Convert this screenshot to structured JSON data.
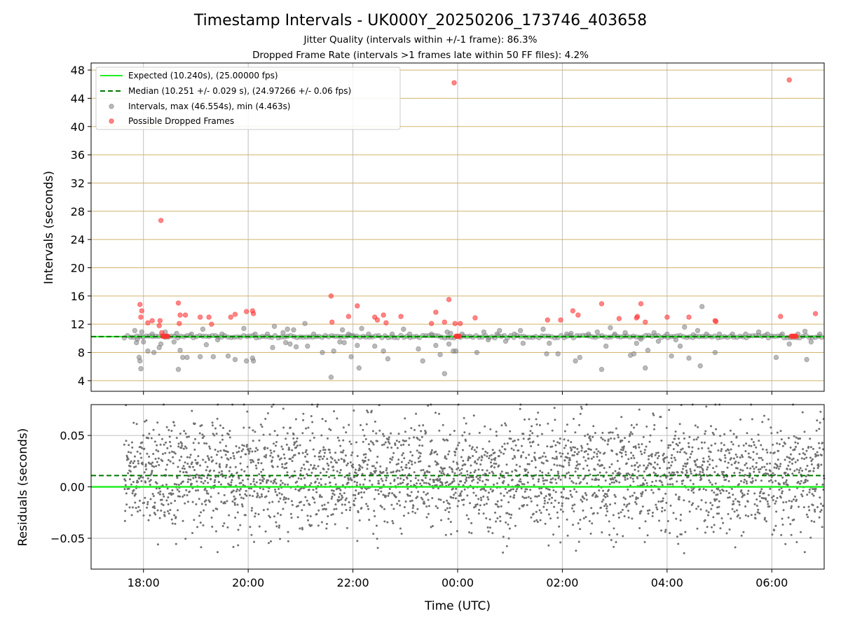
{
  "chart_data": [
    {
      "type": "scatter",
      "title": "Timestamp Intervals - UK000Y_20250206_173746_403658",
      "subtitles": [
        "Jitter Quality (intervals within +/-1 frame): 86.3%",
        "Dropped Frame Rate (intervals >1 frames late within 50 FF files): 4.2%"
      ],
      "xlabel": "",
      "ylabel": "Intervals (seconds)",
      "xlim": [
        "17:00",
        "07:00"
      ],
      "ylim": [
        2.5,
        49
      ],
      "y_ticks": [
        4,
        8,
        12,
        16,
        20,
        24,
        28,
        32,
        36,
        40,
        44,
        48
      ],
      "grid": "major, horizontal lines tan, vertical lines grey",
      "legend_position": "top-left",
      "reference_lines": [
        {
          "name": "Expected (10.240s), (25.00000 fps)",
          "y": 10.24,
          "style": "solid",
          "color": "#22ee22"
        },
        {
          "name": "Median (10.251 +/- 0.029 s), (24.97266 +/- 0.06 fps)",
          "y": 10.251,
          "style": "dashed",
          "color": "#007700"
        }
      ],
      "series": [
        {
          "name": "Intervals, max (46.554s), min (4.463s)",
          "color": "#808080",
          "points": [
            [
              "17:50",
              11.1
            ],
            [
              "17:52",
              9.4
            ],
            [
              "17:53",
              9.9
            ],
            [
              "17:55",
              7.3
            ],
            [
              "17:56",
              6.8
            ],
            [
              "17:57",
              5.7
            ],
            [
              "17:58",
              10.9
            ],
            [
              "18:00",
              9.5
            ],
            [
              "18:05",
              8.2
            ],
            [
              "18:10",
              10.6
            ],
            [
              "18:12",
              8.0
            ],
            [
              "18:18",
              8.7
            ],
            [
              "18:20",
              9.2
            ],
            [
              "18:25",
              10.9
            ],
            [
              "18:35",
              9.5
            ],
            [
              "18:38",
              10.7
            ],
            [
              "18:40",
              5.6
            ],
            [
              "18:42",
              8.3
            ],
            [
              "18:45",
              7.3
            ],
            [
              "18:50",
              7.3
            ],
            [
              "18:55",
              10.6
            ],
            [
              "19:05",
              7.4
            ],
            [
              "19:08",
              11.3
            ],
            [
              "19:12",
              9.1
            ],
            [
              "19:20",
              7.4
            ],
            [
              "19:25",
              9.8
            ],
            [
              "19:30",
              10.6
            ],
            [
              "19:37",
              7.5
            ],
            [
              "19:45",
              7.0
            ],
            [
              "19:55",
              11.4
            ],
            [
              "19:58",
              6.8
            ],
            [
              "20:05",
              7.2
            ],
            [
              "20:06",
              6.8
            ],
            [
              "20:08",
              10.6
            ],
            [
              "20:22",
              10.6
            ],
            [
              "20:28",
              8.7
            ],
            [
              "20:30",
              11.7
            ],
            [
              "20:40",
              10.8
            ],
            [
              "20:43",
              9.4
            ],
            [
              "20:45",
              11.3
            ],
            [
              "20:48",
              9.2
            ],
            [
              "20:52",
              11.2
            ],
            [
              "20:55",
              8.8
            ],
            [
              "21:05",
              12.1
            ],
            [
              "21:08",
              8.9
            ],
            [
              "21:15",
              10.6
            ],
            [
              "21:25",
              8.0
            ],
            [
              "21:35",
              4.5
            ],
            [
              "21:38",
              8.2
            ],
            [
              "21:45",
              9.5
            ],
            [
              "21:48",
              11.2
            ],
            [
              "21:50",
              9.4
            ],
            [
              "21:55",
              10.6
            ],
            [
              "21:58",
              7.4
            ],
            [
              "22:00",
              10.4
            ],
            [
              "22:05",
              9.0
            ],
            [
              "22:07",
              5.8
            ],
            [
              "22:10",
              11.4
            ],
            [
              "22:18",
              10.6
            ],
            [
              "22:25",
              8.9
            ],
            [
              "22:35",
              8.2
            ],
            [
              "22:40",
              7.1
            ],
            [
              "22:45",
              10.6
            ],
            [
              "22:58",
              11.3
            ],
            [
              "23:05",
              10.6
            ],
            [
              "23:15",
              8.5
            ],
            [
              "23:20",
              6.8
            ],
            [
              "23:30",
              10.6
            ],
            [
              "23:35",
              9.0
            ],
            [
              "23:40",
              7.7
            ],
            [
              "23:45",
              5.0
            ],
            [
              "23:48",
              10.9
            ],
            [
              "23:50",
              9.2
            ],
            [
              "23:52",
              10.7
            ],
            [
              "23:55",
              8.2
            ],
            [
              "23:58",
              8.2
            ],
            [
              "00:05",
              10.6
            ],
            [
              "00:22",
              8.0
            ],
            [
              "00:30",
              10.9
            ],
            [
              "00:35",
              9.8
            ],
            [
              "00:45",
              10.6
            ],
            [
              "00:48",
              11.1
            ],
            [
              "00:55",
              9.6
            ],
            [
              "01:05",
              10.6
            ],
            [
              "01:12",
              11.1
            ],
            [
              "01:15",
              9.3
            ],
            [
              "01:38",
              11.3
            ],
            [
              "01:42",
              7.8
            ],
            [
              "01:45",
              9.3
            ],
            [
              "01:55",
              7.8
            ],
            [
              "02:05",
              10.6
            ],
            [
              "02:10",
              10.7
            ],
            [
              "02:15",
              6.8
            ],
            [
              "02:20",
              7.3
            ],
            [
              "02:30",
              10.6
            ],
            [
              "02:40",
              10.9
            ],
            [
              "02:45",
              5.6
            ],
            [
              "02:50",
              8.9
            ],
            [
              "02:55",
              11.5
            ],
            [
              "03:00",
              10.6
            ],
            [
              "03:12",
              10.8
            ],
            [
              "03:18",
              7.6
            ],
            [
              "03:22",
              7.8
            ],
            [
              "03:25",
              9.3
            ],
            [
              "03:30",
              9.9
            ],
            [
              "03:35",
              5.8
            ],
            [
              "03:38",
              8.3
            ],
            [
              "03:45",
              10.8
            ],
            [
              "03:50",
              9.6
            ],
            [
              "04:00",
              10.6
            ],
            [
              "04:05",
              7.5
            ],
            [
              "04:10",
              9.8
            ],
            [
              "04:15",
              8.9
            ],
            [
              "04:20",
              11.6
            ],
            [
              "04:25",
              7.2
            ],
            [
              "04:30",
              10.5
            ],
            [
              "04:35",
              11.1
            ],
            [
              "04:38",
              6.1
            ],
            [
              "04:40",
              14.5
            ],
            [
              "04:45",
              10.6
            ],
            [
              "04:55",
              8.0
            ],
            [
              "05:00",
              10.6
            ],
            [
              "05:15",
              10.6
            ],
            [
              "05:30",
              10.6
            ],
            [
              "05:45",
              10.9
            ],
            [
              "05:55",
              10.6
            ],
            [
              "06:05",
              7.3
            ],
            [
              "06:12",
              10.6
            ],
            [
              "06:20",
              9.2
            ],
            [
              "06:30",
              10.6
            ],
            [
              "06:38",
              11.0
            ],
            [
              "06:40",
              7.0
            ],
            [
              "06:45",
              9.5
            ],
            [
              "06:55",
              10.6
            ]
          ]
        },
        {
          "name": "Possible Dropped Frames",
          "color": "#ff3333",
          "points": [
            [
              "17:56",
              14.8
            ],
            [
              "17:57",
              13.0
            ],
            [
              "17:58",
              13.9
            ],
            [
              "18:05",
              12.2
            ],
            [
              "18:10",
              12.5
            ],
            [
              "18:18",
              11.8
            ],
            [
              "18:19",
              12.5
            ],
            [
              "18:20",
              26.7
            ],
            [
              "18:21",
              10.8
            ],
            [
              "18:22",
              10.3
            ],
            [
              "18:23",
              10.3
            ],
            [
              "18:24",
              10.3
            ],
            [
              "18:25",
              10.3
            ],
            [
              "18:26",
              10.3
            ],
            [
              "18:27",
              10.3
            ],
            [
              "18:28",
              10.3
            ],
            [
              "18:40",
              15.0
            ],
            [
              "18:41",
              12.1
            ],
            [
              "18:42",
              13.3
            ],
            [
              "18:48",
              13.3
            ],
            [
              "19:05",
              13.0
            ],
            [
              "19:15",
              13.0
            ],
            [
              "19:18",
              12.0
            ],
            [
              "19:40",
              13.0
            ],
            [
              "19:45",
              13.4
            ],
            [
              "19:58",
              13.8
            ],
            [
              "20:05",
              13.9
            ],
            [
              "20:06",
              13.5
            ],
            [
              "21:35",
              16.0
            ],
            [
              "21:36",
              12.3
            ],
            [
              "21:55",
              13.1
            ],
            [
              "22:05",
              14.6
            ],
            [
              "22:25",
              13.0
            ],
            [
              "22:28",
              12.6
            ],
            [
              "22:35",
              13.3
            ],
            [
              "22:38",
              12.2
            ],
            [
              "22:55",
              13.1
            ],
            [
              "23:30",
              12.1
            ],
            [
              "23:35",
              13.7
            ],
            [
              "23:45",
              12.3
            ],
            [
              "23:50",
              15.5
            ],
            [
              "23:56",
              46.2
            ],
            [
              "23:57",
              12.1
            ],
            [
              "23:58",
              10.3
            ],
            [
              "23:59",
              10.3
            ],
            [
              "00:00",
              10.3
            ],
            [
              "00:01",
              10.3
            ],
            [
              "00:02",
              10.3
            ],
            [
              "00:03",
              12.1
            ],
            [
              "00:20",
              12.9
            ],
            [
              "01:43",
              12.6
            ],
            [
              "01:58",
              12.6
            ],
            [
              "02:12",
              13.9
            ],
            [
              "02:18",
              13.3
            ],
            [
              "02:45",
              14.9
            ],
            [
              "03:05",
              12.8
            ],
            [
              "03:25",
              12.9
            ],
            [
              "03:26",
              13.1
            ],
            [
              "03:30",
              14.9
            ],
            [
              "03:35",
              12.3
            ],
            [
              "04:00",
              13.0
            ],
            [
              "04:25",
              13.0
            ],
            [
              "04:55",
              12.5
            ],
            [
              "04:56",
              12.4
            ],
            [
              "06:10",
              13.1
            ],
            [
              "06:20",
              46.6
            ],
            [
              "06:22",
              10.3
            ],
            [
              "06:23",
              10.3
            ],
            [
              "06:24",
              10.3
            ],
            [
              "06:25",
              10.3
            ],
            [
              "06:26",
              10.3
            ],
            [
              "06:27",
              10.3
            ],
            [
              "06:28",
              10.3
            ],
            [
              "06:50",
              13.5
            ]
          ]
        }
      ]
    },
    {
      "type": "scatter",
      "xlabel": "Time (UTC)",
      "ylabel": "Residuals (seconds)",
      "xlim": [
        "17:00",
        "07:00"
      ],
      "x_ticks": [
        "18:00",
        "20:00",
        "22:00",
        "00:00",
        "02:00",
        "04:00",
        "06:00"
      ],
      "ylim": [
        -0.08,
        0.08
      ],
      "y_ticks": [
        {
          "value": 0.05,
          "label": "0.05"
        },
        {
          "value": 0.0,
          "label": "0.00"
        },
        {
          "value": -0.05,
          "label": "−0.05"
        }
      ],
      "grid": "major, grey",
      "reference_lines": [
        {
          "y": 0.0,
          "style": "solid",
          "color": "#22ee22"
        },
        {
          "y": 0.011,
          "style": "dashed",
          "color": "#007700"
        }
      ],
      "series": [
        {
          "color": "#707070",
          "description_of_distribution": "about 3000 residual points, one per interval, from 17:38 to 07:00",
          "x_range": [
            "17:38",
            "07:00"
          ],
          "mean": 0.011,
          "spread": 0.03,
          "range": [
            -0.08,
            0.08
          ]
        }
      ]
    }
  ]
}
